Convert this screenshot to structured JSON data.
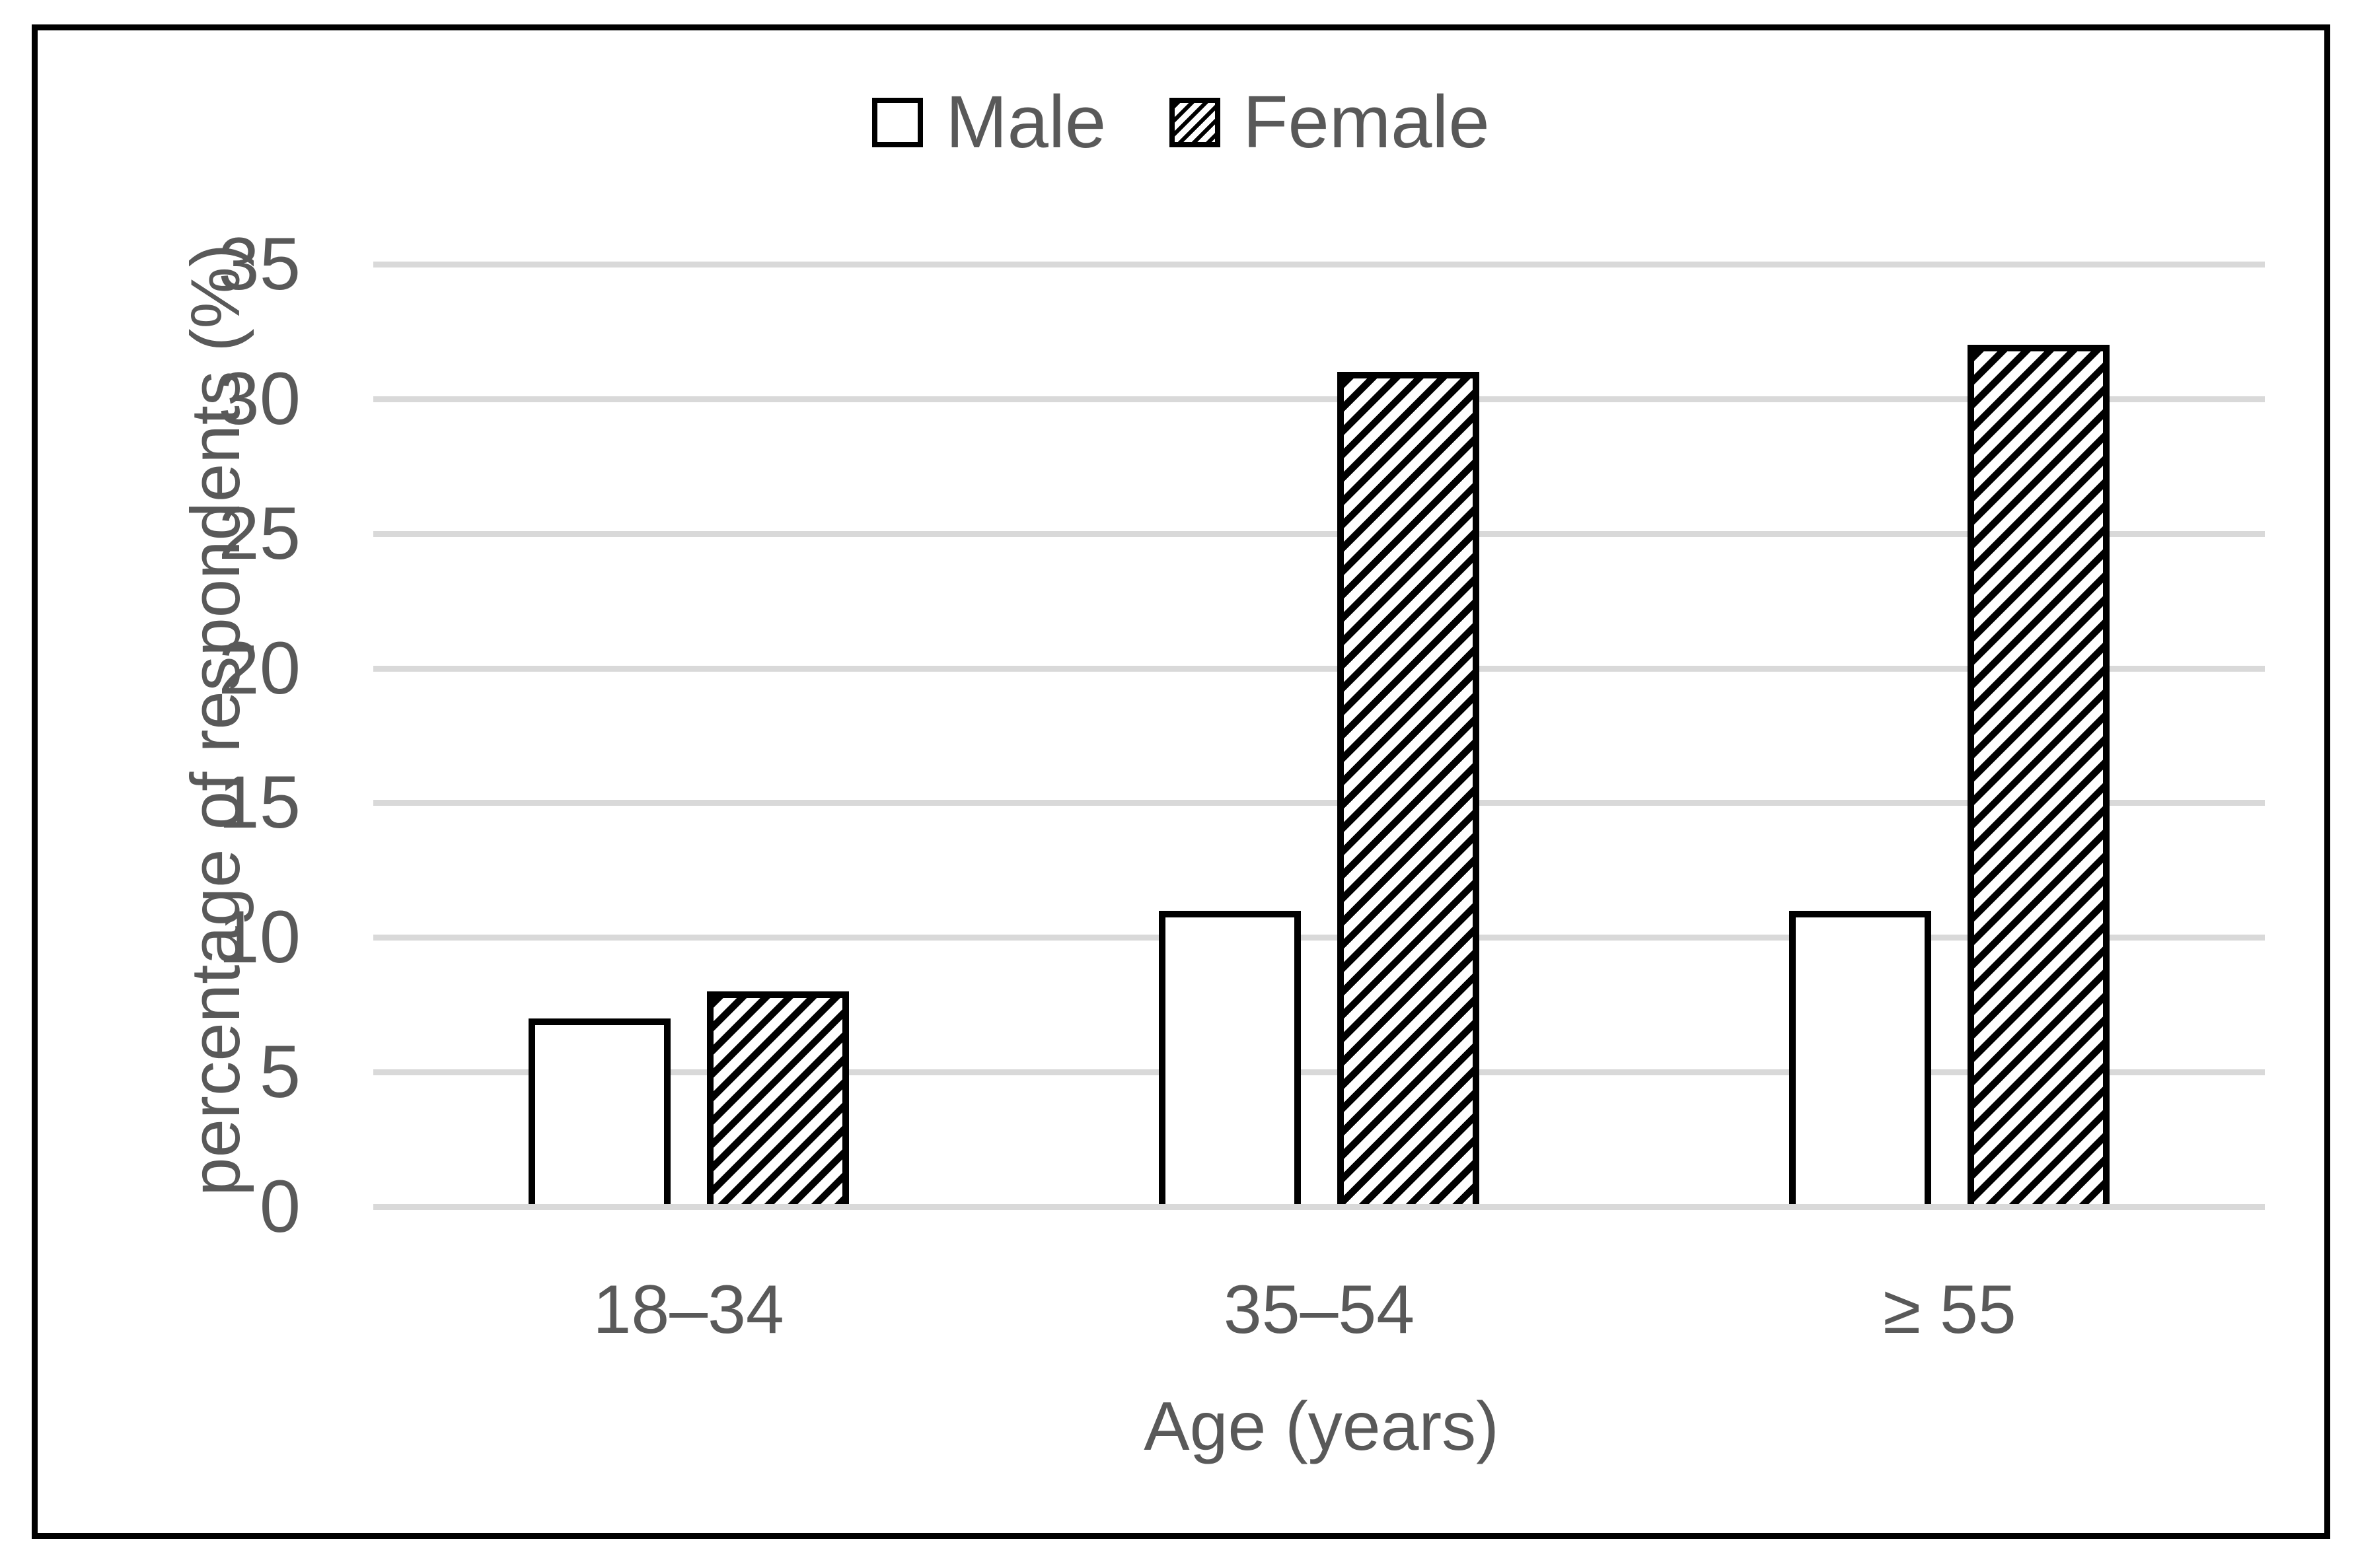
{
  "chart_data": {
    "type": "bar",
    "categories": [
      "18–34",
      "35–54",
      "≥ 55"
    ],
    "series": [
      {
        "name": "Male",
        "values": [
          7,
          11,
          11
        ],
        "pattern": "solid-white"
      },
      {
        "name": "Female",
        "values": [
          8,
          31,
          32
        ],
        "pattern": "diagonal-hatch"
      }
    ],
    "title": "",
    "xlabel": "Age (years)",
    "ylabel": "percentage of respondents (%)",
    "yticks": [
      0,
      5,
      10,
      15,
      20,
      25,
      30,
      35
    ],
    "ylim": [
      0,
      35
    ],
    "grid": "horizontal-only",
    "legend_position": "top-center"
  },
  "legend": {
    "male_label": "Male",
    "female_label": "Female"
  },
  "colors": {
    "background": "#ffffff",
    "frame_border": "#000000",
    "gridline": "#d9d9d9",
    "bar_outline": "#000000",
    "male_fill": "#ffffff",
    "female_hatch": "#000000",
    "text": "#595959"
  }
}
